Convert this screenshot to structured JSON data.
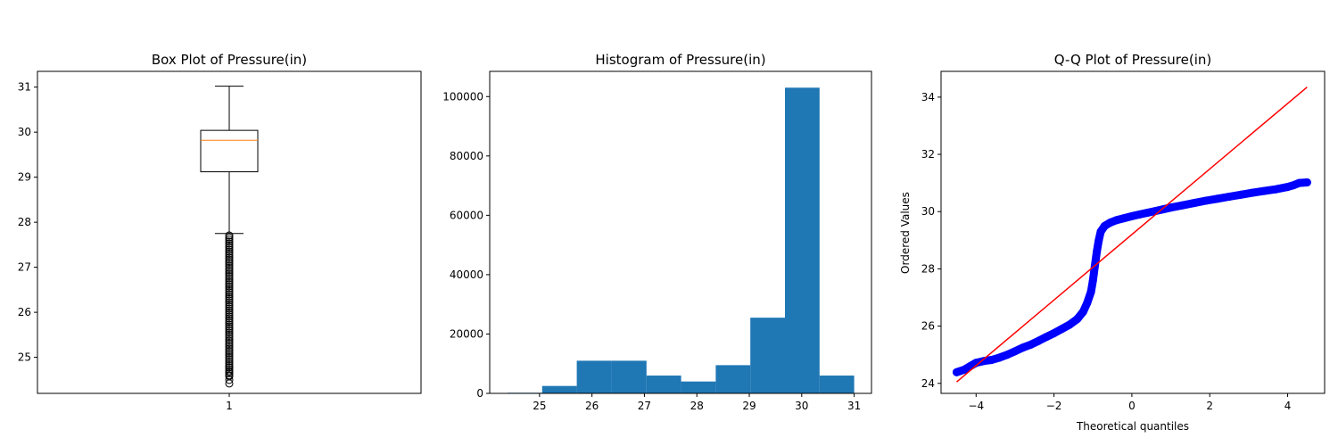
{
  "chart_data": [
    {
      "type": "box",
      "title": "Box Plot of Pressure(in)",
      "xlabel": "",
      "ylabel": "",
      "categories": [
        "1"
      ],
      "ylim": [
        24.2,
        31.35
      ],
      "yticks": [
        25,
        26,
        27,
        28,
        29,
        30,
        31
      ],
      "box": {
        "whisker_low": 27.75,
        "q1": 29.12,
        "median": 29.82,
        "q3": 30.04,
        "whisker_high": 31.02
      },
      "outliers": {
        "range": [
          24.6,
          27.72
        ],
        "visible_points": [
          24.42,
          24.5,
          24.58,
          24.68,
          24.78
        ]
      },
      "colors": {
        "box": "#000000",
        "median": "#ff7f0e"
      }
    },
    {
      "type": "bar",
      "title": "Histogram of Pressure(in)",
      "xlabel": "",
      "ylabel": "",
      "xlim": [
        24.05,
        31.33
      ],
      "ylim": [
        0,
        108500
      ],
      "xticks": [
        25,
        26,
        27,
        28,
        29,
        30,
        31
      ],
      "yticks": [
        0,
        20000,
        40000,
        60000,
        80000,
        100000
      ],
      "bin_edges": [
        24.39,
        25.05,
        25.71,
        26.37,
        27.04,
        27.7,
        28.36,
        29.02,
        29.68,
        30.34,
        31.0
      ],
      "values": [
        200,
        2500,
        11000,
        11000,
        6000,
        4000,
        9500,
        25500,
        103000,
        6000
      ],
      "colors": {
        "bar": "#1f77b4"
      }
    },
    {
      "type": "scatter",
      "title": "Q-Q Plot of Pressure(in)",
      "xlabel": "Theoretical quantiles",
      "ylabel": "Ordered Values",
      "xlim": [
        -4.9,
        4.95
      ],
      "ylim": [
        23.65,
        34.9
      ],
      "xticks": [
        -4,
        -2,
        0,
        2,
        4
      ],
      "yticks": [
        24,
        26,
        28,
        30,
        32,
        34
      ],
      "points": [
        [
          -4.5,
          24.39
        ],
        [
          -4.3,
          24.48
        ],
        [
          -4.15,
          24.6
        ],
        [
          -4.0,
          24.72
        ],
        [
          -3.8,
          24.78
        ],
        [
          -3.6,
          24.82
        ],
        [
          -3.4,
          24.9
        ],
        [
          -3.2,
          25.0
        ],
        [
          -3.0,
          25.12
        ],
        [
          -2.8,
          25.25
        ],
        [
          -2.6,
          25.35
        ],
        [
          -2.4,
          25.48
        ],
        [
          -2.2,
          25.62
        ],
        [
          -2.0,
          25.75
        ],
        [
          -1.8,
          25.9
        ],
        [
          -1.6,
          26.05
        ],
        [
          -1.4,
          26.25
        ],
        [
          -1.25,
          26.5
        ],
        [
          -1.15,
          26.8
        ],
        [
          -1.05,
          27.2
        ],
        [
          -1.0,
          27.6
        ],
        [
          -0.95,
          28.1
        ],
        [
          -0.9,
          28.6
        ],
        [
          -0.85,
          29.0
        ],
        [
          -0.8,
          29.3
        ],
        [
          -0.7,
          29.5
        ],
        [
          -0.55,
          29.62
        ],
        [
          -0.4,
          29.7
        ],
        [
          -0.2,
          29.77
        ],
        [
          0.0,
          29.84
        ],
        [
          0.2,
          29.9
        ],
        [
          0.4,
          29.96
        ],
        [
          0.6,
          30.02
        ],
        [
          0.8,
          30.08
        ],
        [
          1.0,
          30.14
        ],
        [
          1.3,
          30.22
        ],
        [
          1.6,
          30.3
        ],
        [
          1.9,
          30.38
        ],
        [
          2.2,
          30.45
        ],
        [
          2.5,
          30.52
        ],
        [
          2.8,
          30.59
        ],
        [
          3.1,
          30.66
        ],
        [
          3.4,
          30.72
        ],
        [
          3.7,
          30.78
        ],
        [
          4.0,
          30.86
        ],
        [
          4.15,
          30.92
        ],
        [
          4.3,
          31.0
        ],
        [
          4.5,
          31.02
        ]
      ],
      "fit_line": {
        "x": [
          -4.5,
          4.5
        ],
        "y": [
          24.05,
          34.35
        ]
      },
      "colors": {
        "points": "#0000ff",
        "line": "#ff0000"
      }
    }
  ]
}
